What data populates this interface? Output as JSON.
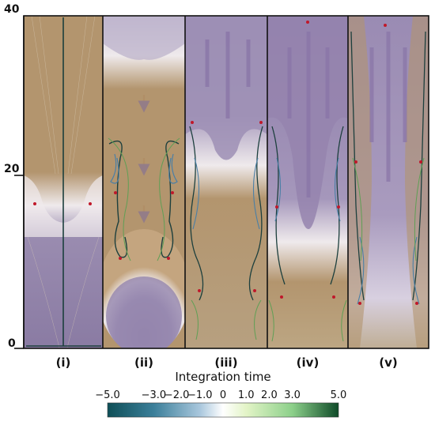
{
  "y_axis": {
    "ticks": [
      "40",
      "20",
      "0"
    ]
  },
  "panels": [
    {
      "label": "(i)"
    },
    {
      "label": "(ii)"
    },
    {
      "label": "(iii)"
    },
    {
      "label": "(iv)"
    },
    {
      "label": "(v)"
    }
  ],
  "colorbar": {
    "title": "Integration time",
    "tick_labels": [
      "−5.0",
      "−3.0",
      "−2.0",
      "−1.0",
      "0",
      "1.0",
      "2.0",
      "3.0",
      "5.0"
    ],
    "tick_values": [
      -5,
      -3,
      -2,
      -1,
      0,
      1,
      2,
      3,
      5
    ],
    "range": [
      -5,
      5
    ],
    "colors": [
      "#0e4f57",
      "#3b7f9a",
      "#a9c7dd",
      "#ffffff",
      "#e3f4c7",
      "#8cd08a",
      "#0e4a28"
    ]
  },
  "colors": {
    "tan": "#b3956e",
    "purple": "#9080ab",
    "white": "#efeaec",
    "trajectory_dark": "#1c3f3d",
    "trajectory_blue": "#4a7fa6",
    "trajectory_green": "#5f9f55",
    "critical_point": "#c0182a"
  }
}
